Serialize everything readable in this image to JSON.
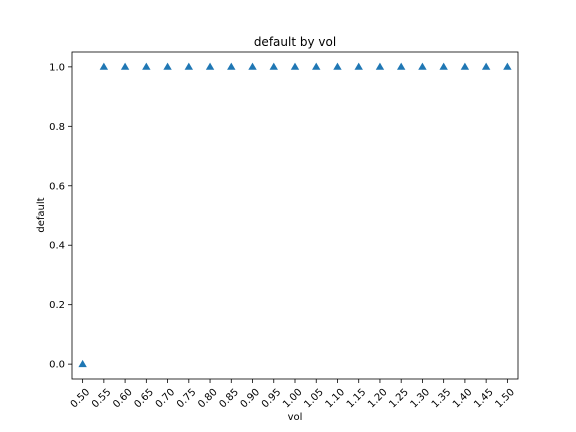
{
  "chart_data": {
    "type": "scatter",
    "title": "default by vol",
    "xlabel": "vol",
    "ylabel": "default",
    "marker": "triangle-up",
    "color": "#1f77b4",
    "grid": false,
    "legend": "none",
    "x_ticks": [
      "0.50",
      "0.55",
      "0.60",
      "0.65",
      "0.70",
      "0.75",
      "0.80",
      "0.85",
      "0.90",
      "0.95",
      "1.00",
      "1.05",
      "1.10",
      "1.15",
      "1.20",
      "1.25",
      "1.30",
      "1.35",
      "1.40",
      "1.45",
      "1.50"
    ],
    "y_ticks": [
      "0.0",
      "0.2",
      "0.4",
      "0.6",
      "0.8",
      "1.0"
    ],
    "xlim": [
      0.475,
      1.525
    ],
    "ylim": [
      -0.05,
      1.05
    ],
    "x": [
      0.5,
      0.55,
      0.6,
      0.65,
      0.7,
      0.75,
      0.8,
      0.85,
      0.9,
      0.95,
      1.0,
      1.05,
      1.1,
      1.15,
      1.2,
      1.25,
      1.3,
      1.35,
      1.4,
      1.45,
      1.5
    ],
    "y": [
      0.0,
      1.0,
      1.0,
      1.0,
      1.0,
      1.0,
      1.0,
      1.0,
      1.0,
      1.0,
      1.0,
      1.0,
      1.0,
      1.0,
      1.0,
      1.0,
      1.0,
      1.0,
      1.0,
      1.0,
      1.0
    ]
  }
}
